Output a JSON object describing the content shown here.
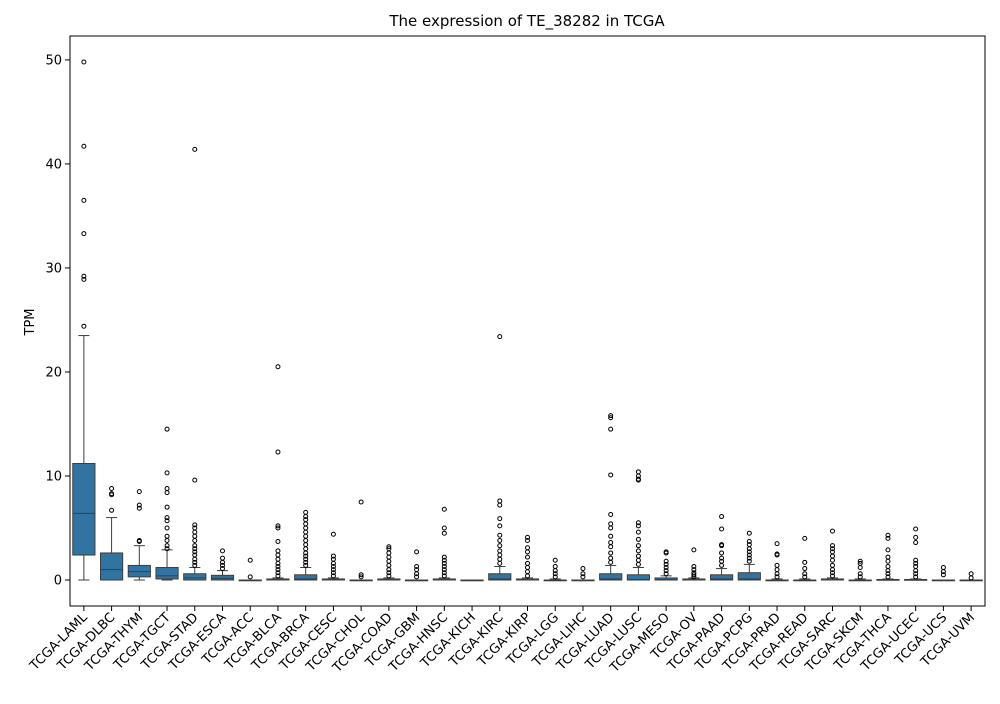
{
  "chart_data": {
    "type": "box",
    "title": "The expression of TE_38282 in TCGA",
    "ylabel": "TPM",
    "xlabel": "",
    "ylim": [
      -2.5,
      52.3
    ],
    "yticks": [
      0,
      10,
      20,
      30,
      40,
      50
    ],
    "grid": false,
    "box_color": "#3274a1",
    "categories": [
      "TCGA-LAML",
      "TCGA-DLBC",
      "TCGA-THYM",
      "TCGA-TGCT",
      "TCGA-STAD",
      "TCGA-ESCA",
      "TCGA-ACC",
      "TCGA-BLCA",
      "TCGA-BRCA",
      "TCGA-CESC",
      "TCGA-CHOL",
      "TCGA-COAD",
      "TCGA-GBM",
      "TCGA-HNSC",
      "TCGA-KICH",
      "TCGA-KIRC",
      "TCGA-KIRP",
      "TCGA-LGG",
      "TCGA-LIHC",
      "TCGA-LUAD",
      "TCGA-LUSC",
      "TCGA-MESO",
      "TCGA-OV",
      "TCGA-PAAD",
      "TCGA-PCPG",
      "TCGA-PRAD",
      "TCGA-READ",
      "TCGA-SARC",
      "TCGA-SKCM",
      "TCGA-THCA",
      "TCGA-UCEC",
      "TCGA-UCS",
      "TCGA-UVM"
    ],
    "boxes": [
      {
        "min": 0,
        "q1": 2.4,
        "median": 6.4,
        "q3": 11.2,
        "max": 23.5,
        "outliers": [
          24.4,
          28.9,
          29.2,
          33.3,
          36.5,
          41.7,
          49.8
        ]
      },
      {
        "min": 0,
        "q1": 0,
        "median": 1.0,
        "q3": 2.6,
        "max": 6.0,
        "outliers": [
          6.7,
          8.2,
          8.3,
          8.8
        ]
      },
      {
        "min": 0,
        "q1": 0.3,
        "median": 0.8,
        "q3": 1.4,
        "max": 3.3,
        "outliers": [
          3.7,
          3.8,
          6.9,
          7.2,
          8.5
        ]
      },
      {
        "min": 0,
        "q1": 0.1,
        "median": 0.4,
        "q3": 1.2,
        "max": 2.9,
        "outliers": [
          3.0,
          3.3,
          3.8,
          4.2,
          5.0,
          5.7,
          6.0,
          7.0,
          8.4,
          8.8,
          10.3,
          14.5
        ]
      },
      {
        "min": 0,
        "q1": 0,
        "median": 0.2,
        "q3": 0.6,
        "max": 1.2,
        "outliers": [
          1.4,
          1.7,
          2.0,
          2.4,
          2.7,
          3.0,
          3.3,
          3.8,
          4.2,
          4.6,
          5.0,
          5.3,
          9.6,
          41.4
        ]
      },
      {
        "min": 0,
        "q1": 0,
        "median": 0.15,
        "q3": 0.45,
        "max": 0.9,
        "outliers": [
          1.1,
          1.4,
          1.7,
          2.1,
          2.8
        ]
      },
      {
        "min": 0,
        "q1": 0,
        "median": 0,
        "q3": 0,
        "max": 0,
        "outliers": [
          0.3,
          1.9
        ]
      },
      {
        "min": 0,
        "q1": 0,
        "median": 0,
        "q3": 0.1,
        "max": 0.2,
        "outliers": [
          0.4,
          0.7,
          1.0,
          1.3,
          1.6,
          2.0,
          2.4,
          2.8,
          3.7,
          5.0,
          5.2,
          12.3,
          20.5
        ]
      },
      {
        "min": 0,
        "q1": 0,
        "median": 0.1,
        "q3": 0.5,
        "max": 1.2,
        "outliers": [
          1.4,
          1.7,
          2.0,
          2.3,
          2.6,
          3.0,
          3.4,
          3.8,
          4.2,
          4.6,
          5.0,
          5.4,
          5.8,
          6.1,
          6.5
        ]
      },
      {
        "min": 0,
        "q1": 0,
        "median": 0,
        "q3": 0.1,
        "max": 0.2,
        "outliers": [
          0.4,
          0.7,
          1.0,
          1.3,
          1.6,
          2.0,
          2.3,
          4.4
        ]
      },
      {
        "min": 0,
        "q1": 0,
        "median": 0,
        "q3": 0,
        "max": 0,
        "outliers": [
          0.3,
          0.5,
          7.5
        ]
      },
      {
        "min": 0,
        "q1": 0,
        "median": 0,
        "q3": 0.1,
        "max": 0.2,
        "outliers": [
          0.4,
          0.7,
          1.0,
          1.4,
          1.8,
          2.2,
          2.6,
          3.0,
          3.2
        ]
      },
      {
        "min": 0,
        "q1": 0,
        "median": 0,
        "q3": 0,
        "max": 0,
        "outliers": [
          0.3,
          0.6,
          1.0,
          1.3,
          2.7
        ]
      },
      {
        "min": 0,
        "q1": 0,
        "median": 0,
        "q3": 0.1,
        "max": 0.2,
        "outliers": [
          0.4,
          0.7,
          1.0,
          1.3,
          1.6,
          1.9,
          2.2,
          4.5,
          5.0,
          6.8
        ]
      },
      {
        "min": 0,
        "q1": 0,
        "median": 0,
        "q3": 0,
        "max": 0,
        "outliers": []
      },
      {
        "min": 0,
        "q1": 0,
        "median": 0.1,
        "q3": 0.6,
        "max": 1.3,
        "outliers": [
          1.6,
          2.0,
          2.4,
          2.8,
          3.3,
          3.8,
          4.3,
          5.2,
          5.9,
          7.2,
          7.6,
          23.4
        ]
      },
      {
        "min": 0,
        "q1": 0,
        "median": 0,
        "q3": 0.1,
        "max": 0.2,
        "outliers": [
          0.4,
          0.8,
          1.2,
          1.6,
          2.2,
          2.7,
          3.1,
          3.8,
          4.1
        ]
      },
      {
        "min": 0,
        "q1": 0,
        "median": 0,
        "q3": 0,
        "max": 0.1,
        "outliers": [
          0.3,
          0.6,
          0.9,
          1.3,
          1.9
        ]
      },
      {
        "min": 0,
        "q1": 0,
        "median": 0,
        "q3": 0,
        "max": 0,
        "outliers": [
          0.3,
          0.6,
          1.1
        ]
      },
      {
        "min": 0,
        "q1": 0,
        "median": 0.1,
        "q3": 0.6,
        "max": 1.4,
        "outliers": [
          1.7,
          2.1,
          2.6,
          3.2,
          3.6,
          4.2,
          5.0,
          5.4,
          6.3,
          10.1,
          14.5,
          15.6,
          15.8
        ]
      },
      {
        "min": 0,
        "q1": 0,
        "median": 0.05,
        "q3": 0.5,
        "max": 1.2,
        "outliers": [
          1.5,
          1.9,
          2.3,
          2.8,
          3.3,
          3.9,
          4.6,
          5.2,
          5.5,
          9.6,
          9.7,
          10.0,
          10.4
        ]
      },
      {
        "min": 0,
        "q1": 0,
        "median": 0.05,
        "q3": 0.2,
        "max": 0.4,
        "outliers": [
          0.6,
          0.9,
          1.2,
          1.5,
          1.8,
          2.6,
          2.7
        ]
      },
      {
        "min": 0,
        "q1": 0,
        "median": 0,
        "q3": 0.1,
        "max": 0.2,
        "outliers": [
          0.3,
          0.5,
          0.7,
          1.0,
          1.3,
          2.9
        ]
      },
      {
        "min": 0,
        "q1": 0,
        "median": 0.1,
        "q3": 0.5,
        "max": 1.1,
        "outliers": [
          1.4,
          1.8,
          2.1,
          2.6,
          3.3,
          3.4,
          4.9,
          6.1
        ]
      },
      {
        "min": 0,
        "q1": 0,
        "median": 0.1,
        "q3": 0.7,
        "max": 1.5,
        "outliers": [
          1.8,
          2.1,
          2.4,
          2.7,
          3.0,
          3.4,
          3.7,
          4.5
        ]
      },
      {
        "min": 0,
        "q1": 0,
        "median": 0,
        "q3": 0,
        "max": 0.1,
        "outliers": [
          0.3,
          0.6,
          1.0,
          1.4,
          2.4,
          2.5,
          3.5
        ]
      },
      {
        "min": 0,
        "q1": 0,
        "median": 0,
        "q3": 0,
        "max": 0.1,
        "outliers": [
          0.3,
          0.6,
          1.1,
          1.7,
          4.0
        ]
      },
      {
        "min": 0,
        "q1": 0,
        "median": 0,
        "q3": 0.1,
        "max": 0.2,
        "outliers": [
          0.4,
          0.7,
          1.0,
          1.4,
          1.9,
          2.3,
          2.7,
          3.0,
          3.3,
          4.7
        ]
      },
      {
        "min": 0,
        "q1": 0,
        "median": 0,
        "q3": 0,
        "max": 0.1,
        "outliers": [
          0.3,
          0.6,
          1.2,
          1.6,
          1.8
        ]
      },
      {
        "min": 0,
        "q1": 0,
        "median": 0,
        "q3": 0.05,
        "max": 0.1,
        "outliers": [
          0.3,
          0.6,
          0.9,
          1.3,
          1.8,
          2.2,
          2.9,
          4.0,
          4.3
        ]
      },
      {
        "min": 0,
        "q1": 0,
        "median": 0,
        "q3": 0.05,
        "max": 0.1,
        "outliers": [
          0.3,
          0.6,
          0.9,
          1.3,
          1.6,
          1.9,
          3.6,
          4.1,
          4.9
        ]
      },
      {
        "min": 0,
        "q1": 0,
        "median": 0,
        "q3": 0,
        "max": 0,
        "outliers": [
          0.5,
          0.8,
          1.2
        ]
      },
      {
        "min": 0,
        "q1": 0,
        "median": 0,
        "q3": 0,
        "max": 0,
        "outliers": [
          0.2,
          0.6
        ]
      }
    ]
  }
}
